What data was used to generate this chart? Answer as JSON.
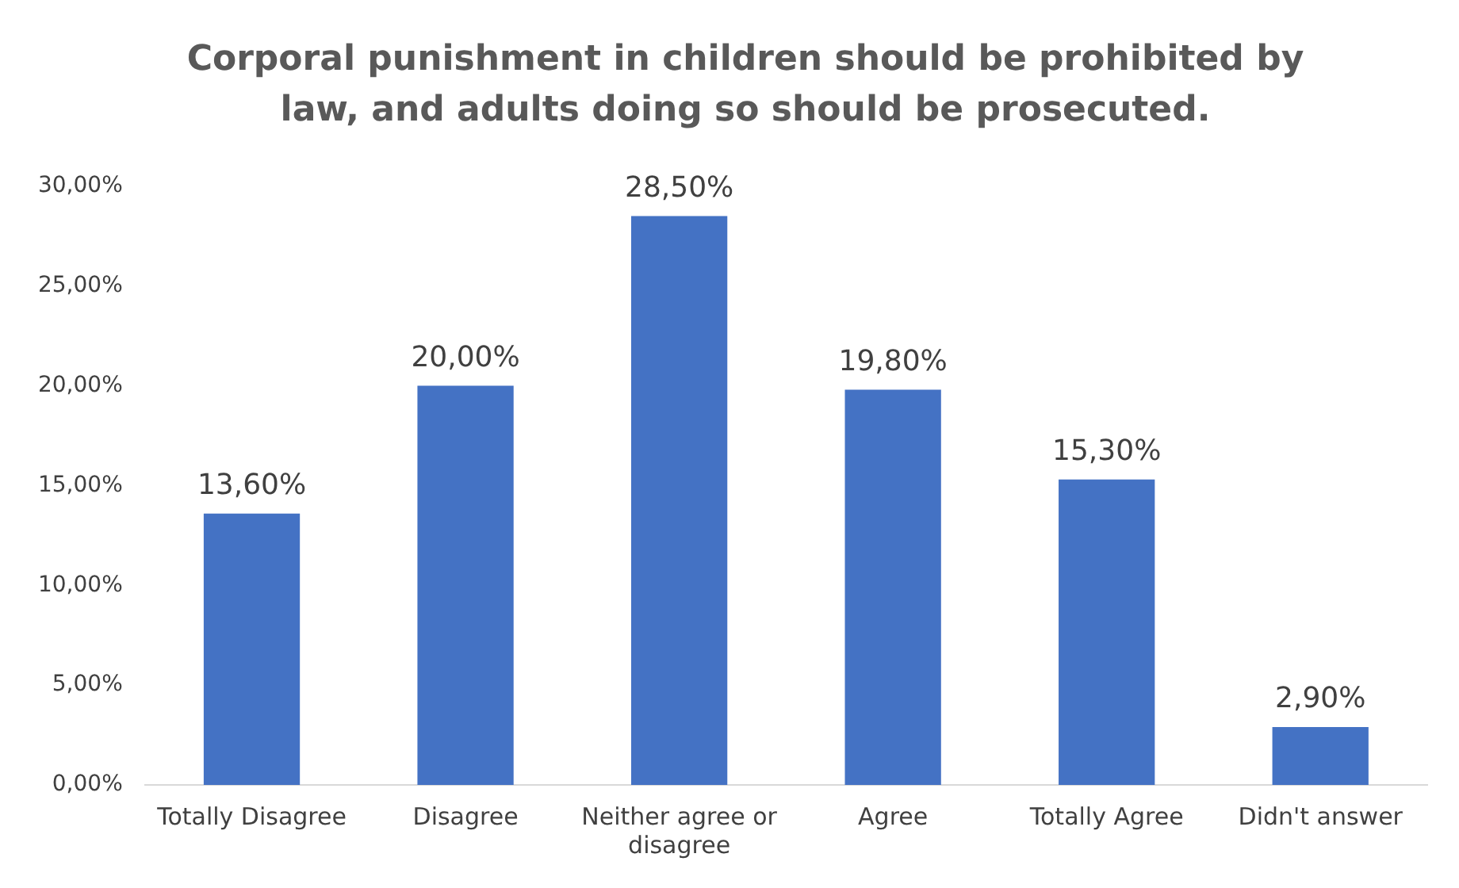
{
  "chart_data": {
    "type": "bar",
    "title": "Corporal punishment in children should be prohibited by law, and adults doing so should be prosecuted.",
    "categories": [
      "Totally Disagree",
      "Disagree",
      "Neither agree or disagree",
      "Agree",
      "Totally Agree",
      "Didn't answer"
    ],
    "values": [
      13.6,
      20,
      28.5,
      19.8,
      15.3,
      2.9
    ],
    "value_labels": [
      "13,60%",
      "20,00%",
      "28,50%",
      "19,80%",
      "15,30%",
      "2,90%"
    ],
    "color": "#4472c4",
    "ylim": [
      0,
      30
    ],
    "yticks": [
      {
        "value": 0,
        "label": "0,00%"
      },
      {
        "value": 5,
        "label": "5,00%"
      },
      {
        "value": 10,
        "label": "10,00%"
      },
      {
        "value": 15,
        "label": "15,00%"
      },
      {
        "value": 20,
        "label": "20,00%"
      },
      {
        "value": 25,
        "label": "25,00%"
      },
      {
        "value": 30,
        "label": "30,00%"
      }
    ],
    "grid": false,
    "legend": false
  }
}
